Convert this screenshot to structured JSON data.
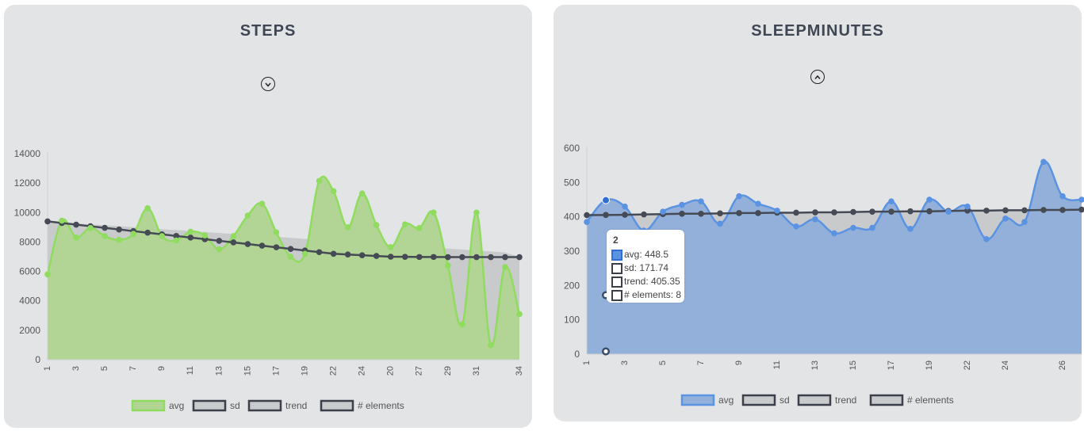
{
  "colors": {
    "card_bg": "#e3e4e6",
    "title": "#3f4654",
    "steps_avg_fill": "#b2d596",
    "steps_avg_line": "#8fdc5e",
    "sleep_avg_fill": "#92b0da",
    "sleep_avg_line": "#5b93e3",
    "trend_line": "#454a54",
    "sd_fill": "#c9cacc",
    "legend_box_border": "#3a3f4a"
  },
  "icons": {
    "steps_toggle": "chevron-down-icon",
    "sleep_toggle": "chevron-up-icon"
  },
  "chart_data": [
    {
      "type": "area",
      "title": "STEPS",
      "x": [
        1,
        2,
        3,
        4,
        5,
        6,
        7,
        8,
        9,
        10,
        11,
        12,
        13,
        14,
        15,
        16,
        17,
        18,
        19,
        20,
        21,
        22,
        23,
        24,
        25,
        26,
        27,
        28,
        29,
        30,
        31,
        32,
        33,
        34
      ],
      "x_tick_labels": [
        "1",
        "",
        "3",
        "",
        "5",
        "",
        "7",
        "",
        "9",
        "",
        "11",
        "",
        "13",
        "",
        "15",
        "",
        "17",
        "",
        "19",
        "",
        "22",
        "",
        "24",
        "",
        "20",
        "",
        "27",
        "",
        "29",
        "",
        "31",
        "",
        "",
        "34"
      ],
      "ylim": [
        0,
        14000
      ],
      "y_ticks": [
        "0",
        "2000",
        "4000",
        "6000",
        "8000",
        "10000",
        "12000",
        "14000"
      ],
      "grid": false,
      "legend": {
        "position": "bottom",
        "entries": [
          "avg",
          "sd",
          "trend",
          "# elements"
        ]
      },
      "series": [
        {
          "name": "avg",
          "values": [
            5800,
            9450,
            8300,
            8950,
            8400,
            8150,
            8550,
            10300,
            8400,
            8100,
            8700,
            8450,
            7500,
            8400,
            9800,
            10600,
            8650,
            7000,
            7200,
            12150,
            11450,
            9000,
            11300,
            9150,
            7650,
            9200,
            8950,
            10000,
            6400,
            2400,
            10000,
            1000,
            6300,
            3100
          ]
        },
        {
          "name": "sd",
          "values": [
            9400,
            9340,
            9270,
            9200,
            9140,
            9070,
            9010,
            8940,
            8870,
            8810,
            8740,
            8680,
            8610,
            8540,
            8480,
            8410,
            8350,
            8280,
            8210,
            8150,
            8080,
            8020,
            7950,
            7880,
            7820,
            7750,
            7690,
            7620,
            7550,
            7490,
            7420,
            7360,
            7290,
            6990
          ]
        },
        {
          "name": "trend",
          "values": [
            9400,
            9290,
            9180,
            9070,
            8960,
            8850,
            8740,
            8630,
            8520,
            8410,
            8300,
            8190,
            8080,
            7970,
            7860,
            7750,
            7640,
            7530,
            7420,
            7310,
            7200,
            7150,
            7100,
            7050,
            7000,
            6990,
            6980,
            6980,
            6970,
            6970,
            6970,
            6970,
            6970,
            6970
          ]
        }
      ]
    },
    {
      "type": "area",
      "title": "SLEEPMINUTES",
      "x": [
        1,
        2,
        3,
        4,
        5,
        6,
        7,
        8,
        9,
        10,
        11,
        12,
        13,
        14,
        15,
        16,
        17,
        18,
        19,
        20,
        21,
        22,
        23,
        24,
        25,
        26,
        27
      ],
      "x_tick_labels": [
        "1",
        "",
        "3",
        "",
        "5",
        "",
        "7",
        "",
        "9",
        "",
        "11",
        "",
        "13",
        "",
        "15",
        "",
        "17",
        "",
        "19",
        "",
        "22",
        "",
        "24",
        "",
        "",
        "26",
        ""
      ],
      "ylim": [
        0,
        600
      ],
      "y_ticks": [
        "0",
        "100",
        "200",
        "300",
        "400",
        "500",
        "600"
      ],
      "grid": false,
      "legend": {
        "position": "bottom",
        "entries": [
          "avg",
          "sd",
          "trend",
          "# elements"
        ]
      },
      "series": [
        {
          "name": "avg",
          "values": [
            385,
            448.5,
            430,
            360,
            415,
            435,
            445,
            380,
            460,
            438,
            418,
            372,
            393,
            352,
            368,
            368,
            445,
            365,
            450,
            415,
            430,
            335,
            395,
            385,
            560,
            460,
            450
          ]
        },
        {
          "name": "sd",
          "values": [
            405,
            405,
            406,
            407,
            408,
            409,
            410,
            410,
            411,
            412,
            412,
            411,
            411,
            412,
            413,
            413,
            414,
            415,
            416,
            417,
            418,
            418,
            419,
            419,
            420,
            420,
            421
          ]
        },
        {
          "name": "trend",
          "values": [
            405,
            405.35,
            406,
            407,
            408,
            409,
            409,
            410,
            411,
            411,
            412,
            412,
            413,
            413,
            414,
            415,
            415,
            416,
            416,
            417,
            418,
            418,
            419,
            419,
            420,
            420,
            421
          ]
        }
      ],
      "tooltip": {
        "title": "2",
        "rows": [
          "avg: 448.5",
          "sd: 171.74",
          "trend: 405.35",
          "# elements: 8"
        ]
      },
      "extra_points": [
        {
          "x": 2,
          "y": 171.74
        },
        {
          "x": 2,
          "y": 8
        }
      ]
    }
  ]
}
